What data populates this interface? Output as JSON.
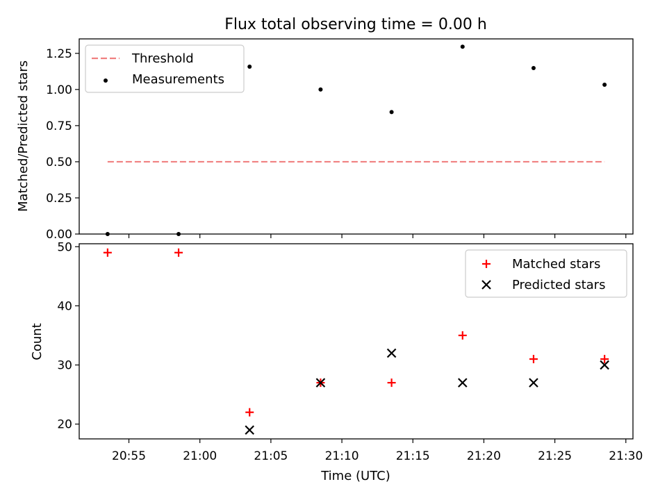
{
  "chart_data": [
    {
      "type": "scatter",
      "title": "Flux total observing time = 0.00 h",
      "xlabel": "",
      "ylabel": "Matched/Predicted stars",
      "xlim": [
        "20:51:30",
        "21:30:30"
      ],
      "ylim": [
        0,
        1.35
      ],
      "yticks": [
        0.0,
        0.25,
        0.5,
        0.75,
        1.0,
        1.25
      ],
      "ytick_labels": [
        "0.00",
        "0.25",
        "0.50",
        "0.75",
        "1.00",
        "1.25"
      ],
      "legend_position": "upper-left",
      "series": [
        {
          "name": "Threshold",
          "kind": "dashed-line",
          "color": "#f08080",
          "x": [
            "20:53:30",
            "21:28:30"
          ],
          "y": [
            0.5,
            0.5
          ]
        },
        {
          "name": "Measurements",
          "kind": "dot",
          "color": "#000000",
          "x": [
            "20:53:30",
            "20:58:30",
            "21:03:30",
            "21:08:30",
            "21:13:30",
            "21:18:30",
            "21:23:30",
            "21:28:30"
          ],
          "y": [
            0.0,
            0.0,
            1.158,
            1.0,
            0.844,
            1.296,
            1.148,
            1.033
          ]
        }
      ]
    },
    {
      "type": "scatter",
      "title": "",
      "xlabel": "Time (UTC)",
      "ylabel": "Count",
      "xlim": [
        "20:51:30",
        "21:30:30"
      ],
      "ylim": [
        17.5,
        50.5
      ],
      "yticks": [
        20,
        30,
        40,
        50
      ],
      "ytick_labels": [
        "20",
        "30",
        "40",
        "50"
      ],
      "xticks": [
        "20:55",
        "21:00",
        "21:05",
        "21:10",
        "21:15",
        "21:20",
        "21:25",
        "21:30"
      ],
      "legend_position": "upper-right",
      "series": [
        {
          "name": "Matched stars",
          "kind": "plus",
          "color": "#ff0000",
          "x": [
            "20:53:30",
            "20:58:30",
            "21:03:30",
            "21:08:30",
            "21:13:30",
            "21:18:30",
            "21:23:30",
            "21:28:30"
          ],
          "y": [
            49,
            49,
            22,
            27,
            27,
            35,
            31,
            31
          ]
        },
        {
          "name": "Predicted stars",
          "kind": "cross",
          "color": "#000000",
          "x": [
            "20:53:30",
            "20:58:30",
            "21:03:30",
            "21:08:30",
            "21:13:30",
            "21:18:30",
            "21:23:30",
            "21:28:30"
          ],
          "y": [
            null,
            null,
            19,
            27,
            32,
            27,
            27,
            30
          ]
        }
      ]
    }
  ]
}
